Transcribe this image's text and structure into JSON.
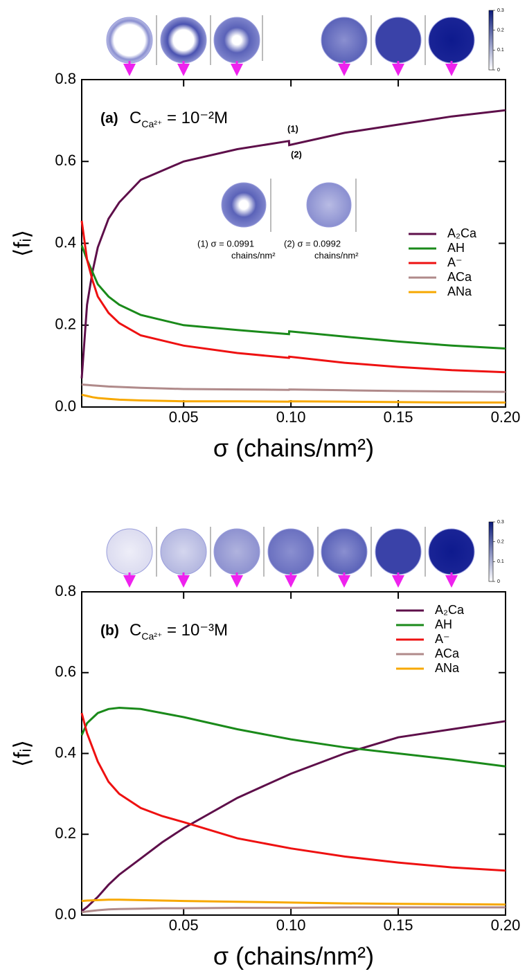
{
  "chart_data": [
    {
      "type": "line",
      "panel_label": "(a)",
      "condition": {
        "symbol": "C",
        "subscript": "Ca²⁺",
        "text": " = 10⁻²M"
      },
      "x_label": "σ (chains/nm²)",
      "y_label": "⟨fᵢ⟩",
      "x": [
        0.0025,
        0.005,
        0.0075,
        0.01,
        0.015,
        0.02,
        0.03,
        0.05,
        0.075,
        0.0991,
        0.0992,
        0.125,
        0.15,
        0.175,
        0.2
      ],
      "series": [
        {
          "name": "A₂Ca",
          "color": "#5e0f4a",
          "values": [
            0.07,
            0.25,
            0.33,
            0.39,
            0.46,
            0.5,
            0.555,
            0.6,
            0.63,
            0.65,
            0.64,
            0.67,
            0.69,
            0.71,
            0.725
          ]
        },
        {
          "name": "AH",
          "color": "#1a8a1a",
          "values": [
            0.395,
            0.36,
            0.33,
            0.3,
            0.27,
            0.25,
            0.225,
            0.2,
            0.188,
            0.178,
            0.185,
            0.172,
            0.16,
            0.15,
            0.143
          ]
        },
        {
          "name": "A⁻",
          "color": "#ee1111",
          "values": [
            0.455,
            0.36,
            0.31,
            0.27,
            0.23,
            0.205,
            0.175,
            0.15,
            0.132,
            0.12,
            0.123,
            0.108,
            0.098,
            0.09,
            0.085
          ]
        },
        {
          "name": "ACa",
          "color": "#b08a8a",
          "values": [
            0.055,
            0.054,
            0.053,
            0.052,
            0.05,
            0.049,
            0.047,
            0.044,
            0.043,
            0.042,
            0.043,
            0.041,
            0.039,
            0.038,
            0.037
          ]
        },
        {
          "name": "ANa",
          "color": "#f7a800",
          "values": [
            0.03,
            0.027,
            0.024,
            0.022,
            0.02,
            0.018,
            0.016,
            0.014,
            0.014,
            0.013,
            0.014,
            0.013,
            0.012,
            0.011,
            0.011
          ]
        }
      ],
      "annotations": [
        "(1)",
        "(2)",
        "(1) σ = 0.0991",
        "chains/nm²",
        "(2) σ = 0.0992",
        "chains/nm²"
      ],
      "xlim": [
        0.0025,
        0.2
      ],
      "xticks": [
        0.05,
        {
          "value": 0.1,
          "label": "0.10"
        },
        0.15,
        {
          "value": 0.2,
          "label": "0.20"
        }
      ],
      "ylim": [
        0,
        0.8
      ],
      "yticks": [
        {
          "value": 0,
          "label": "0.0"
        },
        0.2,
        0.4,
        0.6,
        0.8
      ],
      "legend": "center right",
      "colorbar_ticks": [
        0,
        0.1,
        0.2,
        0.3
      ]
    },
    {
      "type": "line",
      "panel_label": "(b)",
      "condition": {
        "symbol": "C",
        "subscript": "Ca²⁺",
        "text": " = 10⁻³M"
      },
      "x_label": "σ (chains/nm²)",
      "y_label": "⟨fᵢ⟩",
      "x": [
        0.0025,
        0.005,
        0.01,
        0.015,
        0.02,
        0.03,
        0.04,
        0.05,
        0.075,
        0.1,
        0.125,
        0.15,
        0.175,
        0.2
      ],
      "series": [
        {
          "name": "A₂Ca",
          "color": "#5e0f4a",
          "values": [
            0.01,
            0.02,
            0.045,
            0.075,
            0.1,
            0.14,
            0.18,
            0.215,
            0.29,
            0.35,
            0.4,
            0.44,
            0.46,
            0.48
          ]
        },
        {
          "name": "AH",
          "color": "#1a8a1a",
          "values": [
            0.445,
            0.475,
            0.5,
            0.51,
            0.513,
            0.51,
            0.5,
            0.49,
            0.46,
            0.435,
            0.415,
            0.4,
            0.385,
            0.368
          ]
        },
        {
          "name": "A⁻",
          "color": "#ee1111",
          "values": [
            0.5,
            0.45,
            0.38,
            0.33,
            0.3,
            0.265,
            0.245,
            0.23,
            0.19,
            0.165,
            0.145,
            0.13,
            0.118,
            0.11
          ]
        },
        {
          "name": "ACa",
          "color": "#b08a8a",
          "values": [
            0.007,
            0.009,
            0.012,
            0.014,
            0.015,
            0.016,
            0.017,
            0.017,
            0.018,
            0.018,
            0.019,
            0.019,
            0.019,
            0.019
          ]
        },
        {
          "name": "ANa",
          "color": "#f7a800",
          "values": [
            0.035,
            0.036,
            0.037,
            0.038,
            0.038,
            0.037,
            0.036,
            0.035,
            0.033,
            0.031,
            0.029,
            0.028,
            0.027,
            0.026
          ]
        }
      ],
      "annotations": [],
      "xlim": [
        0.0025,
        0.2
      ],
      "xticks": [
        0.05,
        {
          "value": 0.1,
          "label": "0.10"
        },
        0.15,
        {
          "value": 0.2,
          "label": "0.20"
        }
      ],
      "ylim": [
        0,
        0.8
      ],
      "yticks": [
        {
          "value": 0,
          "label": "0.0"
        },
        0.2,
        0.4,
        0.6,
        0.8
      ],
      "legend": "upper right",
      "colorbar_ticks": [
        0,
        0.1,
        0.2,
        0.3
      ]
    }
  ]
}
